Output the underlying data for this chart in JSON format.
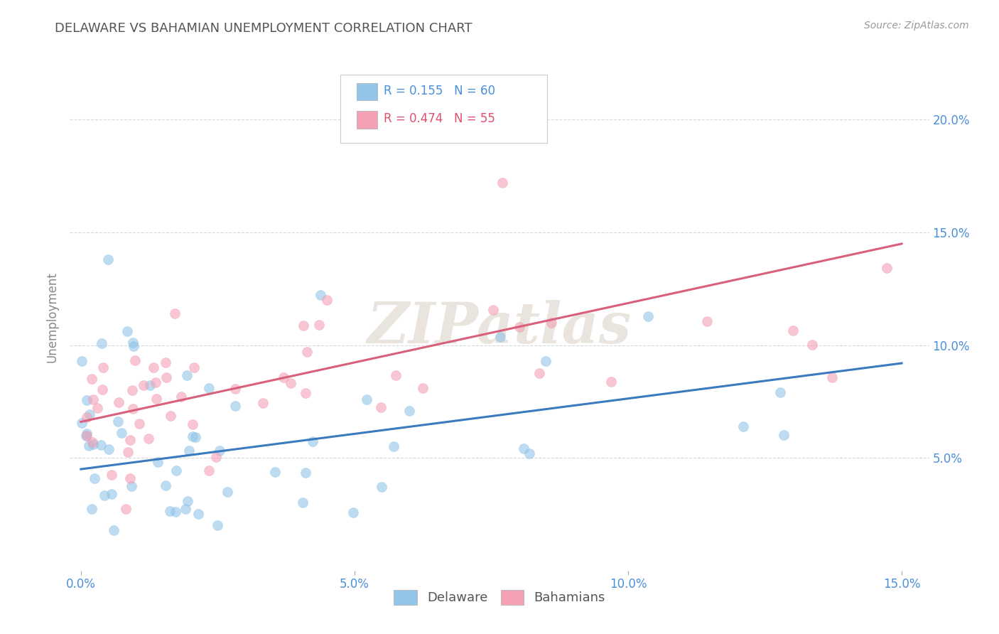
{
  "title": "DELAWARE VS BAHAMIAN UNEMPLOYMENT CORRELATION CHART",
  "source": "Source: ZipAtlas.com",
  "ylabel": "Unemployment",
  "watermark": "ZIPatlas",
  "xlim": [
    -0.002,
    0.155
  ],
  "ylim": [
    0.0,
    0.225
  ],
  "xtick_vals": [
    0.0,
    0.05,
    0.1,
    0.15
  ],
  "xtick_labels": [
    "0.0%",
    "5.0%",
    "10.0%",
    "15.0%"
  ],
  "ytick_vals": [
    0.05,
    0.1,
    0.15,
    0.2
  ],
  "ytick_labels": [
    "5.0%",
    "10.0%",
    "15.0%",
    "20.0%"
  ],
  "delaware_color": "#92c5e8",
  "bahamian_color": "#f4a0b5",
  "delaware_R": 0.155,
  "delaware_N": 60,
  "bahamian_R": 0.474,
  "bahamian_N": 55,
  "delaware_line_color": "#3a7abf",
  "bahamian_line_color": "#d9607a",
  "del_line_x": [
    0.0,
    0.15
  ],
  "del_line_y": [
    0.045,
    0.092
  ],
  "bah_line_x": [
    0.0,
    0.15
  ],
  "bah_line_y": [
    0.066,
    0.145
  ],
  "background_color": "#ffffff",
  "grid_color": "#d0d0d0",
  "title_color": "#555555",
  "tick_label_color": "#4a90d9",
  "legend_label_color_del": "#4a90d9",
  "legend_label_color_bah": "#e05070"
}
